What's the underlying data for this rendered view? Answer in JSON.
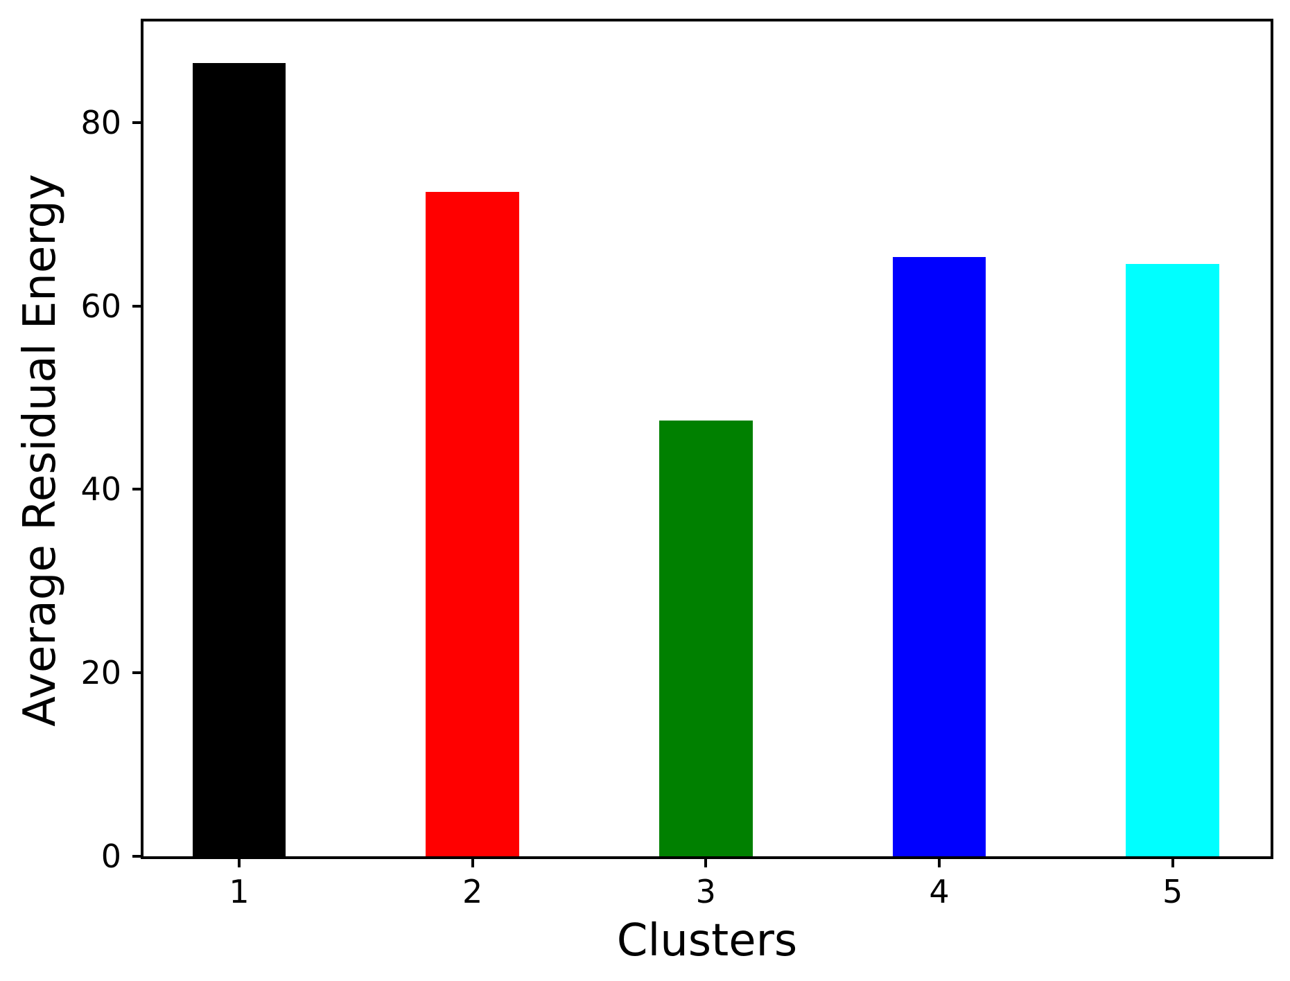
{
  "chart_data": {
    "type": "bar",
    "categories": [
      "1",
      "2",
      "3",
      "4",
      "5"
    ],
    "x": [
      1,
      2,
      3,
      4,
      5
    ],
    "values": [
      86.5,
      72.4,
      47.5,
      65.3,
      64.6
    ],
    "bar_colors": [
      "#000000",
      "#ff0000",
      "#008000",
      "#0000ff",
      "#00ffff"
    ],
    "bar_width": 0.4,
    "title": "",
    "xlabel": "Clusters",
    "ylabel": "Average Residual Energy",
    "xlim": [
      0.59,
      5.42
    ],
    "ylim": [
      0,
      91
    ],
    "yticks": [
      0,
      20,
      40,
      60,
      80
    ],
    "grid": false,
    "legend": null,
    "background_color": "#ffffff",
    "spine_color": "#000000"
  }
}
